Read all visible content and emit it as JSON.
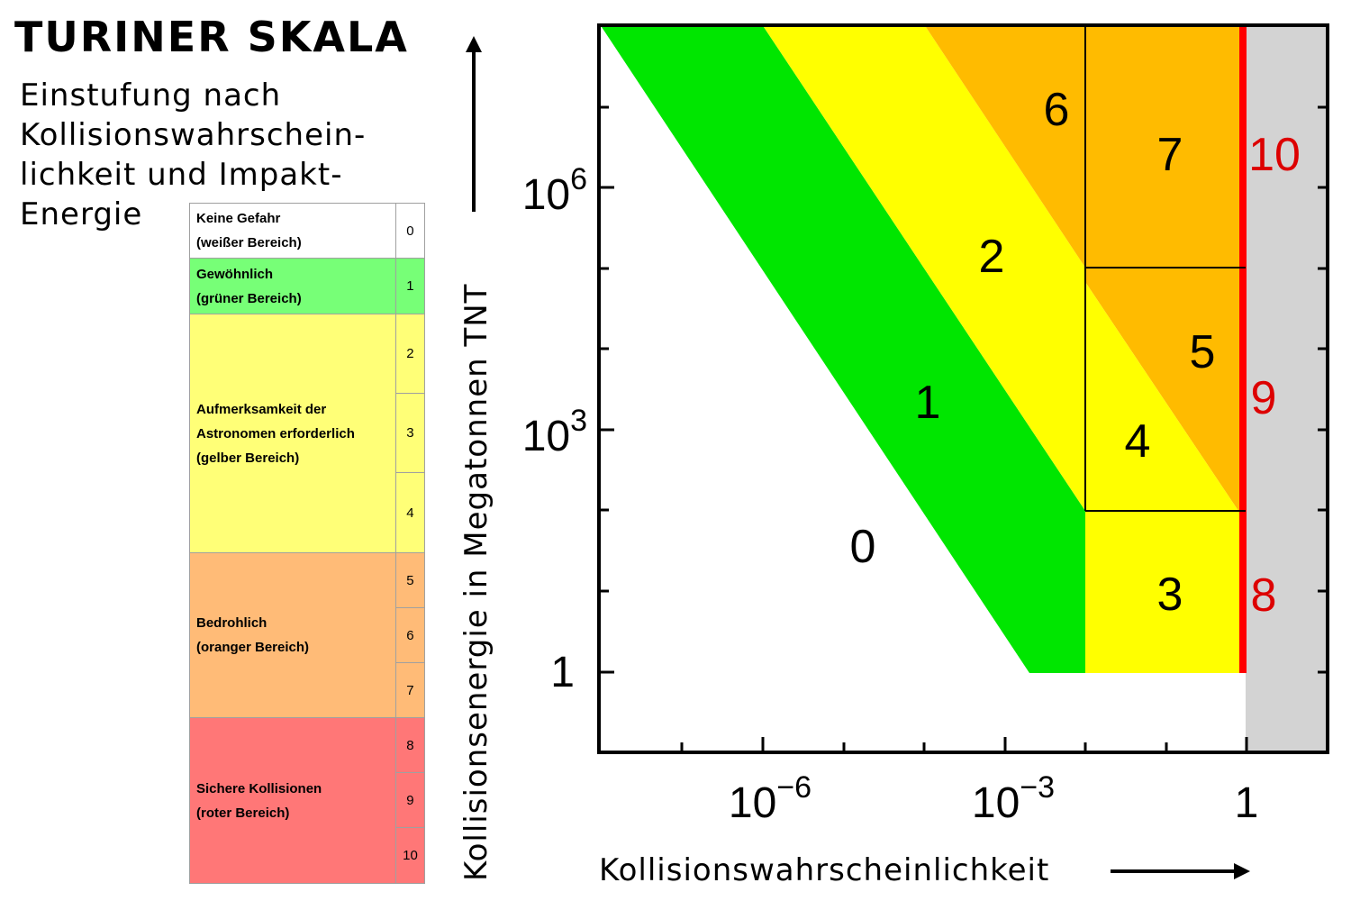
{
  "title": "TURINER SKALA",
  "subtitle_lines": [
    "Einstufung nach",
    "Kollisionswahrschein-",
    "lichkeit und Impakt-",
    "Energie"
  ],
  "legend": [
    {
      "lines": [
        "Keine Gefahr",
        "(weißer Bereich)"
      ],
      "color": "#ffffff",
      "levels": [
        "0"
      ]
    },
    {
      "lines": [
        "Gewöhnlich",
        "(grüner Bereich)"
      ],
      "color": "#77ff77",
      "levels": [
        "1"
      ]
    },
    {
      "lines": [
        "Aufmerksamkeit der",
        "Astronomen erforderlich",
        "(gelber Bereich)"
      ],
      "color": "#ffff77",
      "levels": [
        "2",
        "3",
        "4"
      ]
    },
    {
      "lines": [
        "Bedrohlich",
        "(oranger Bereich)"
      ],
      "color": "#ffbb77",
      "levels": [
        "5",
        "6",
        "7"
      ]
    },
    {
      "lines": [
        "Sichere Kollisionen",
        "(roter Bereich)"
      ],
      "color": "#ff7777",
      "levels": [
        "8",
        "9",
        "10"
      ]
    }
  ],
  "chart": {
    "y_axis_label": "Kollisionsenergie in Megatonnen TNT",
    "x_axis_label": "Kollisionswahrscheinlichkeit",
    "x_ticks": [
      {
        "base": "10",
        "exp": "−6"
      },
      {
        "base": "10",
        "exp": "−3"
      },
      {
        "base": "1",
        "exp": ""
      }
    ],
    "y_ticks": [
      {
        "base": "10",
        "exp": "6"
      },
      {
        "base": "10",
        "exp": "3"
      },
      {
        "base": "1",
        "exp": ""
      }
    ],
    "region_labels": [
      {
        "text": "0",
        "color": "#000000"
      },
      {
        "text": "1",
        "color": "#000000"
      },
      {
        "text": "2",
        "color": "#000000"
      },
      {
        "text": "3",
        "color": "#000000"
      },
      {
        "text": "4",
        "color": "#000000"
      },
      {
        "text": "5",
        "color": "#000000"
      },
      {
        "text": "6",
        "color": "#000000"
      },
      {
        "text": "7",
        "color": "#000000"
      },
      {
        "text": "8",
        "color": "#dd0000"
      },
      {
        "text": "9",
        "color": "#dd0000"
      },
      {
        "text": "10",
        "color": "#dd0000"
      }
    ],
    "colors": {
      "green": "#00e600",
      "yellow": "#ffff00",
      "orange": "#ffbb00",
      "red": "#ff0000",
      "gray": "#d3d3d3"
    }
  }
}
